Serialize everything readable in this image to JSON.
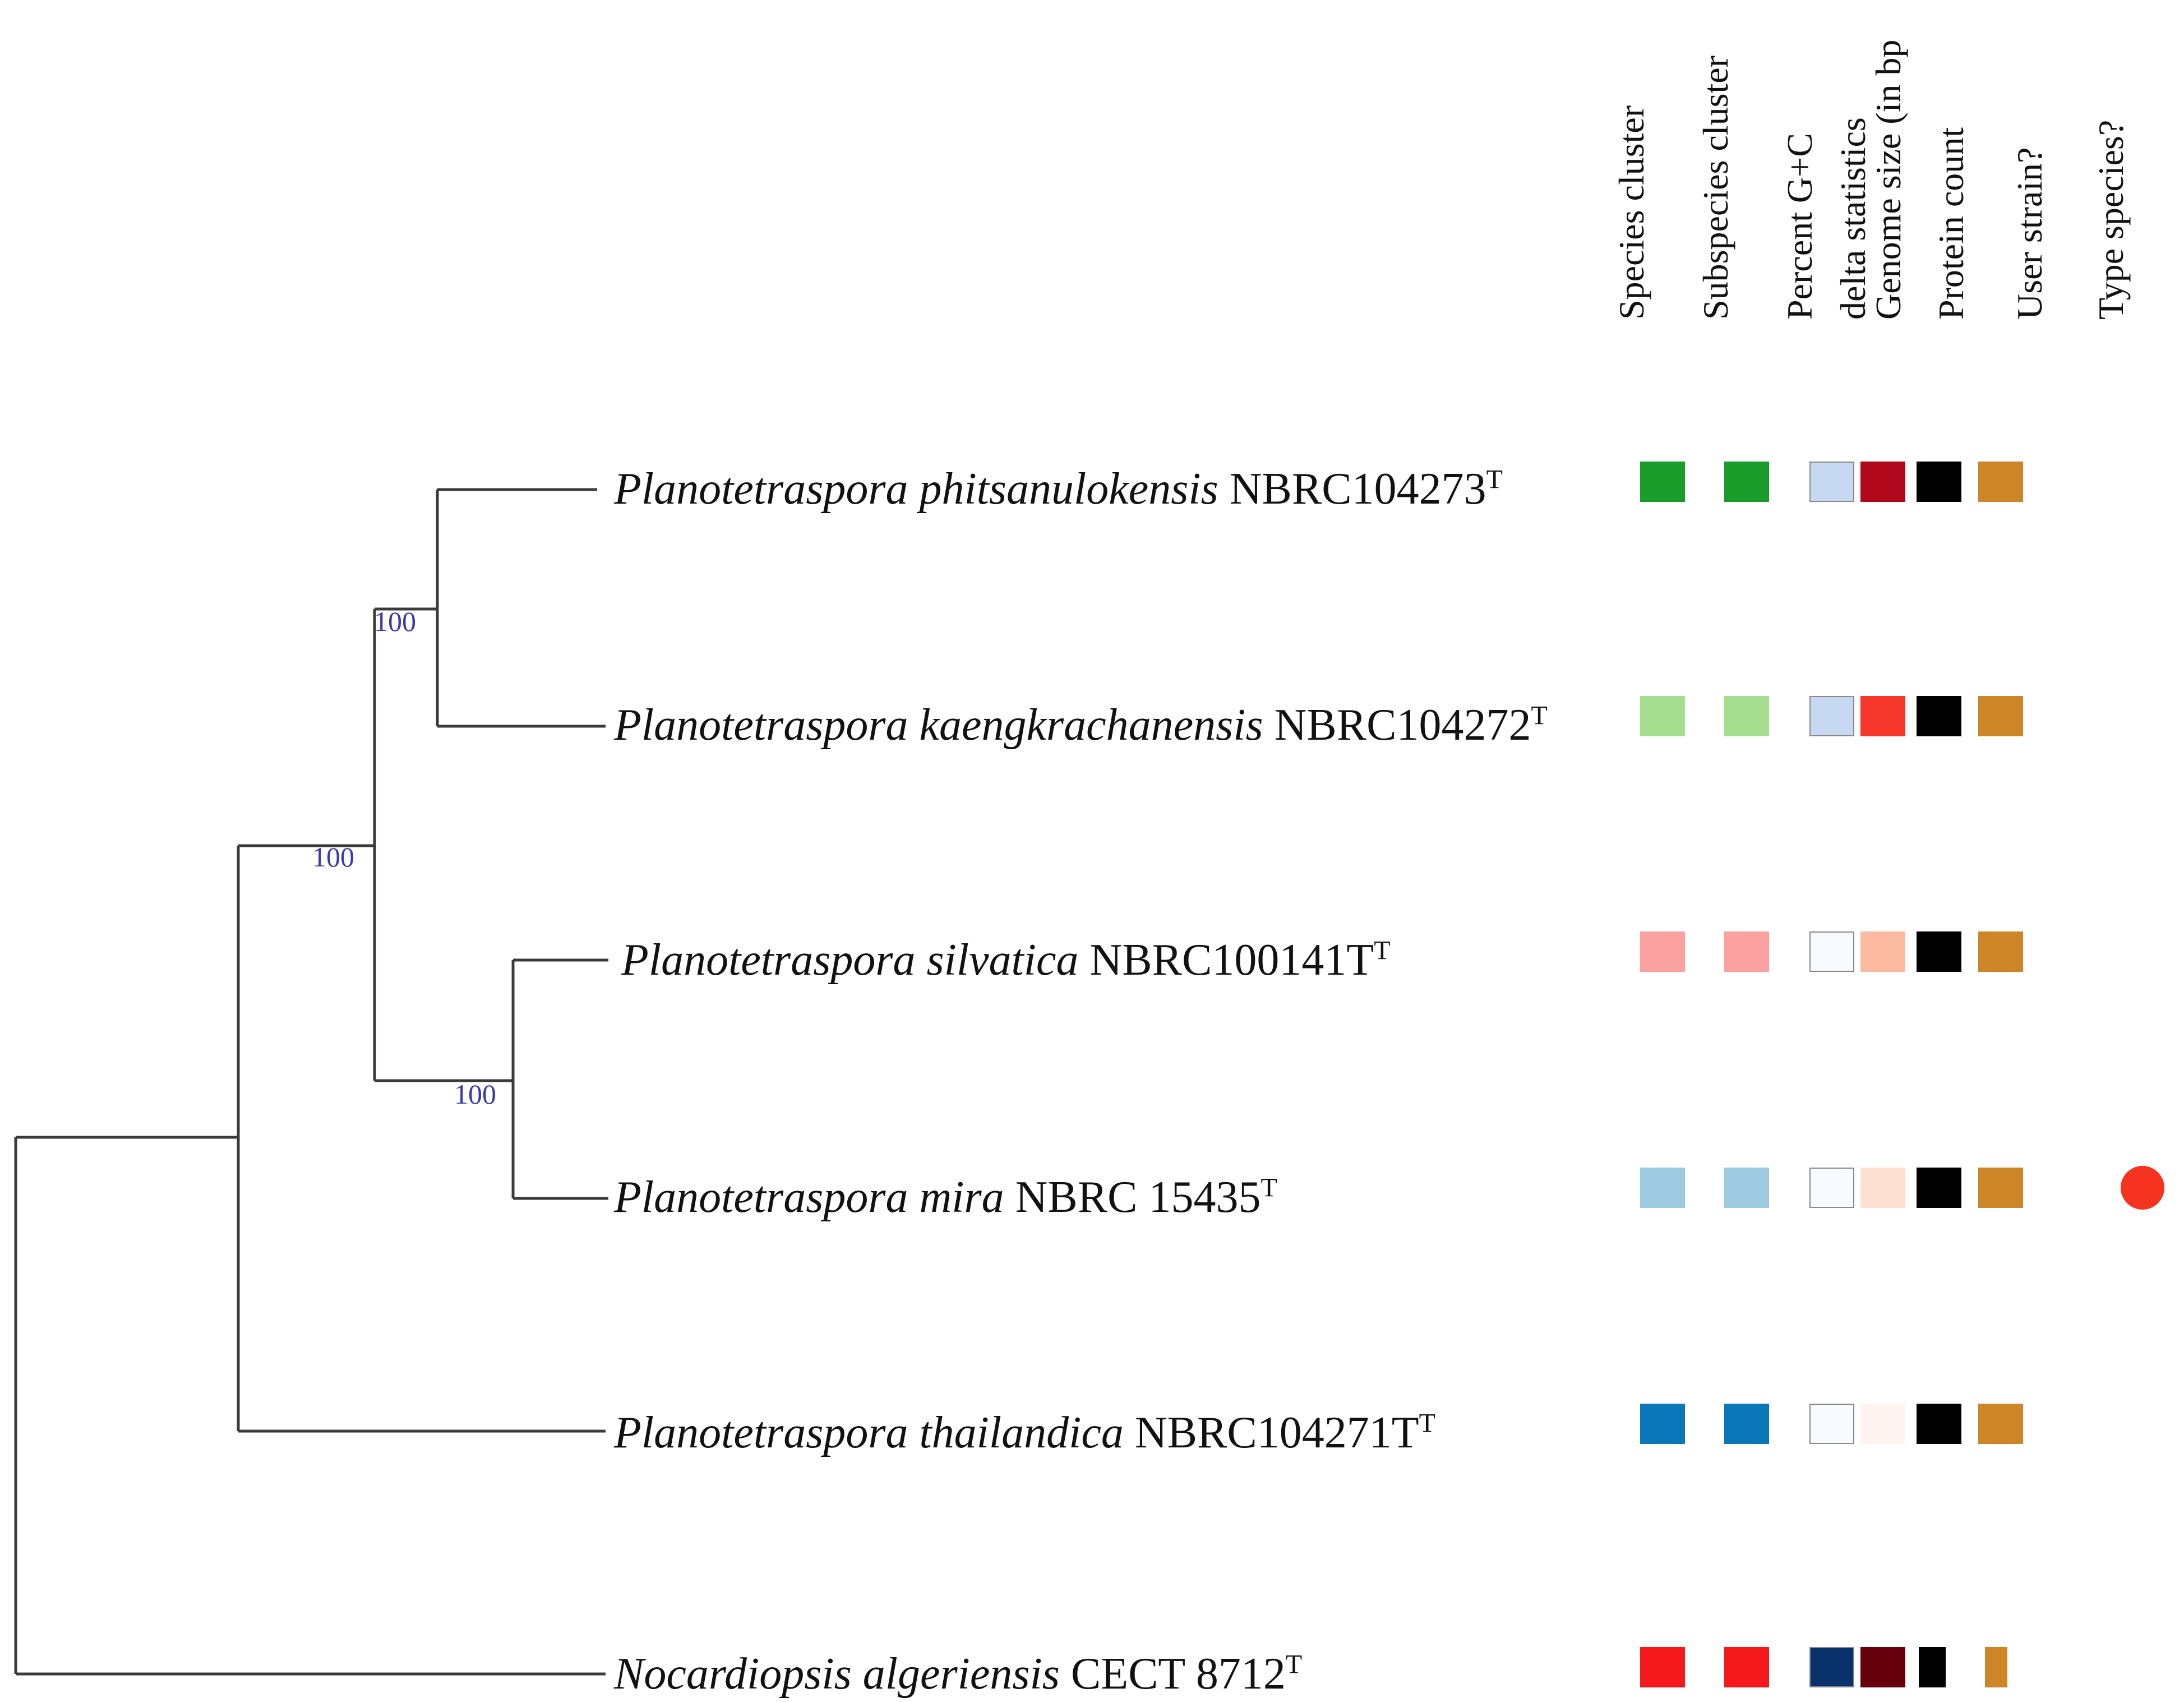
{
  "columns": [
    {
      "key": "species_cluster",
      "label": "Species cluster"
    },
    {
      "key": "subspecies_cluster",
      "label": "Subspecies cluster"
    },
    {
      "key": "percent_gc",
      "label": "Percent G+C"
    },
    {
      "key": "delta_statistics",
      "label": "delta statistics"
    },
    {
      "key": "genome_size",
      "label": "Genome size (in bp"
    },
    {
      "key": "protein_count",
      "label": "Protein count"
    },
    {
      "key": "user_strain",
      "label": "User strain?"
    },
    {
      "key": "type_species",
      "label": "Type species?"
    }
  ],
  "taxa": [
    {
      "genus_species": "Planotetraspora phitsanulokensis",
      "strain": "NBRC104273",
      "superscript": "T",
      "species_cluster": "#1a9c2a",
      "subspecies_cluster": "#1a9c2a",
      "percent_gc": "#c6d9f0",
      "delta_statistics": "#b0071a",
      "genome_size": "#000000",
      "protein_count": "#cc8628",
      "type_species": false
    },
    {
      "genus_species": "Planotetraspora kaengkrachanensis",
      "strain": "NBRC104272",
      "superscript": "T",
      "species_cluster": "#a5de8f",
      "subspecies_cluster": "#a5de8f",
      "percent_gc": "#c6d9f0",
      "delta_statistics": "#f5382a",
      "genome_size": "#000000",
      "protein_count": "#cc8628",
      "type_species": false
    },
    {
      "genus_species": "Planotetraspora silvatica",
      "strain": "NBRC100141T",
      "superscript": "T",
      "species_cluster": "#fba2a0",
      "subspecies_cluster": "#fba2a0",
      "percent_gc": "#f7fbff",
      "delta_statistics": "#fcbba0",
      "genome_size": "#000000",
      "protein_count": "#cc8628",
      "type_species": false
    },
    {
      "genus_species": "Planotetraspora mira",
      "strain": "NBRC 15435",
      "superscript": "T",
      "species_cluster": "#9ecae1",
      "subspecies_cluster": "#9ecae1",
      "percent_gc": "#f7fbff",
      "delta_statistics": "#fde0d2",
      "genome_size": "#000000",
      "protein_count": "#cc8628",
      "type_species": true
    },
    {
      "genus_species": "Planotetraspora thailandica",
      "strain": "NBRC104271T",
      "superscript": "T",
      "species_cluster": "#0a78b8",
      "subspecies_cluster": "#0a78b8",
      "percent_gc": "#f7fbff",
      "delta_statistics": "#fff5f0",
      "genome_size": "#000000",
      "protein_count": "#cc8628",
      "type_species": false
    },
    {
      "genus_species": "Nocardiopsis algeriensis",
      "strain": "CECT 8712",
      "superscript": "T",
      "species_cluster": "#f5191c",
      "subspecies_cluster": "#f5191c",
      "percent_gc": "#08306b",
      "delta_statistics": "#67000d",
      "genome_size": "#000000",
      "protein_count": "#cc8628",
      "type_species": false
    }
  ],
  "bootstrap": [
    "100",
    "100",
    "100"
  ],
  "colors": {
    "type_species_dot": "#f5331f",
    "branch": "#3a3a3a"
  }
}
